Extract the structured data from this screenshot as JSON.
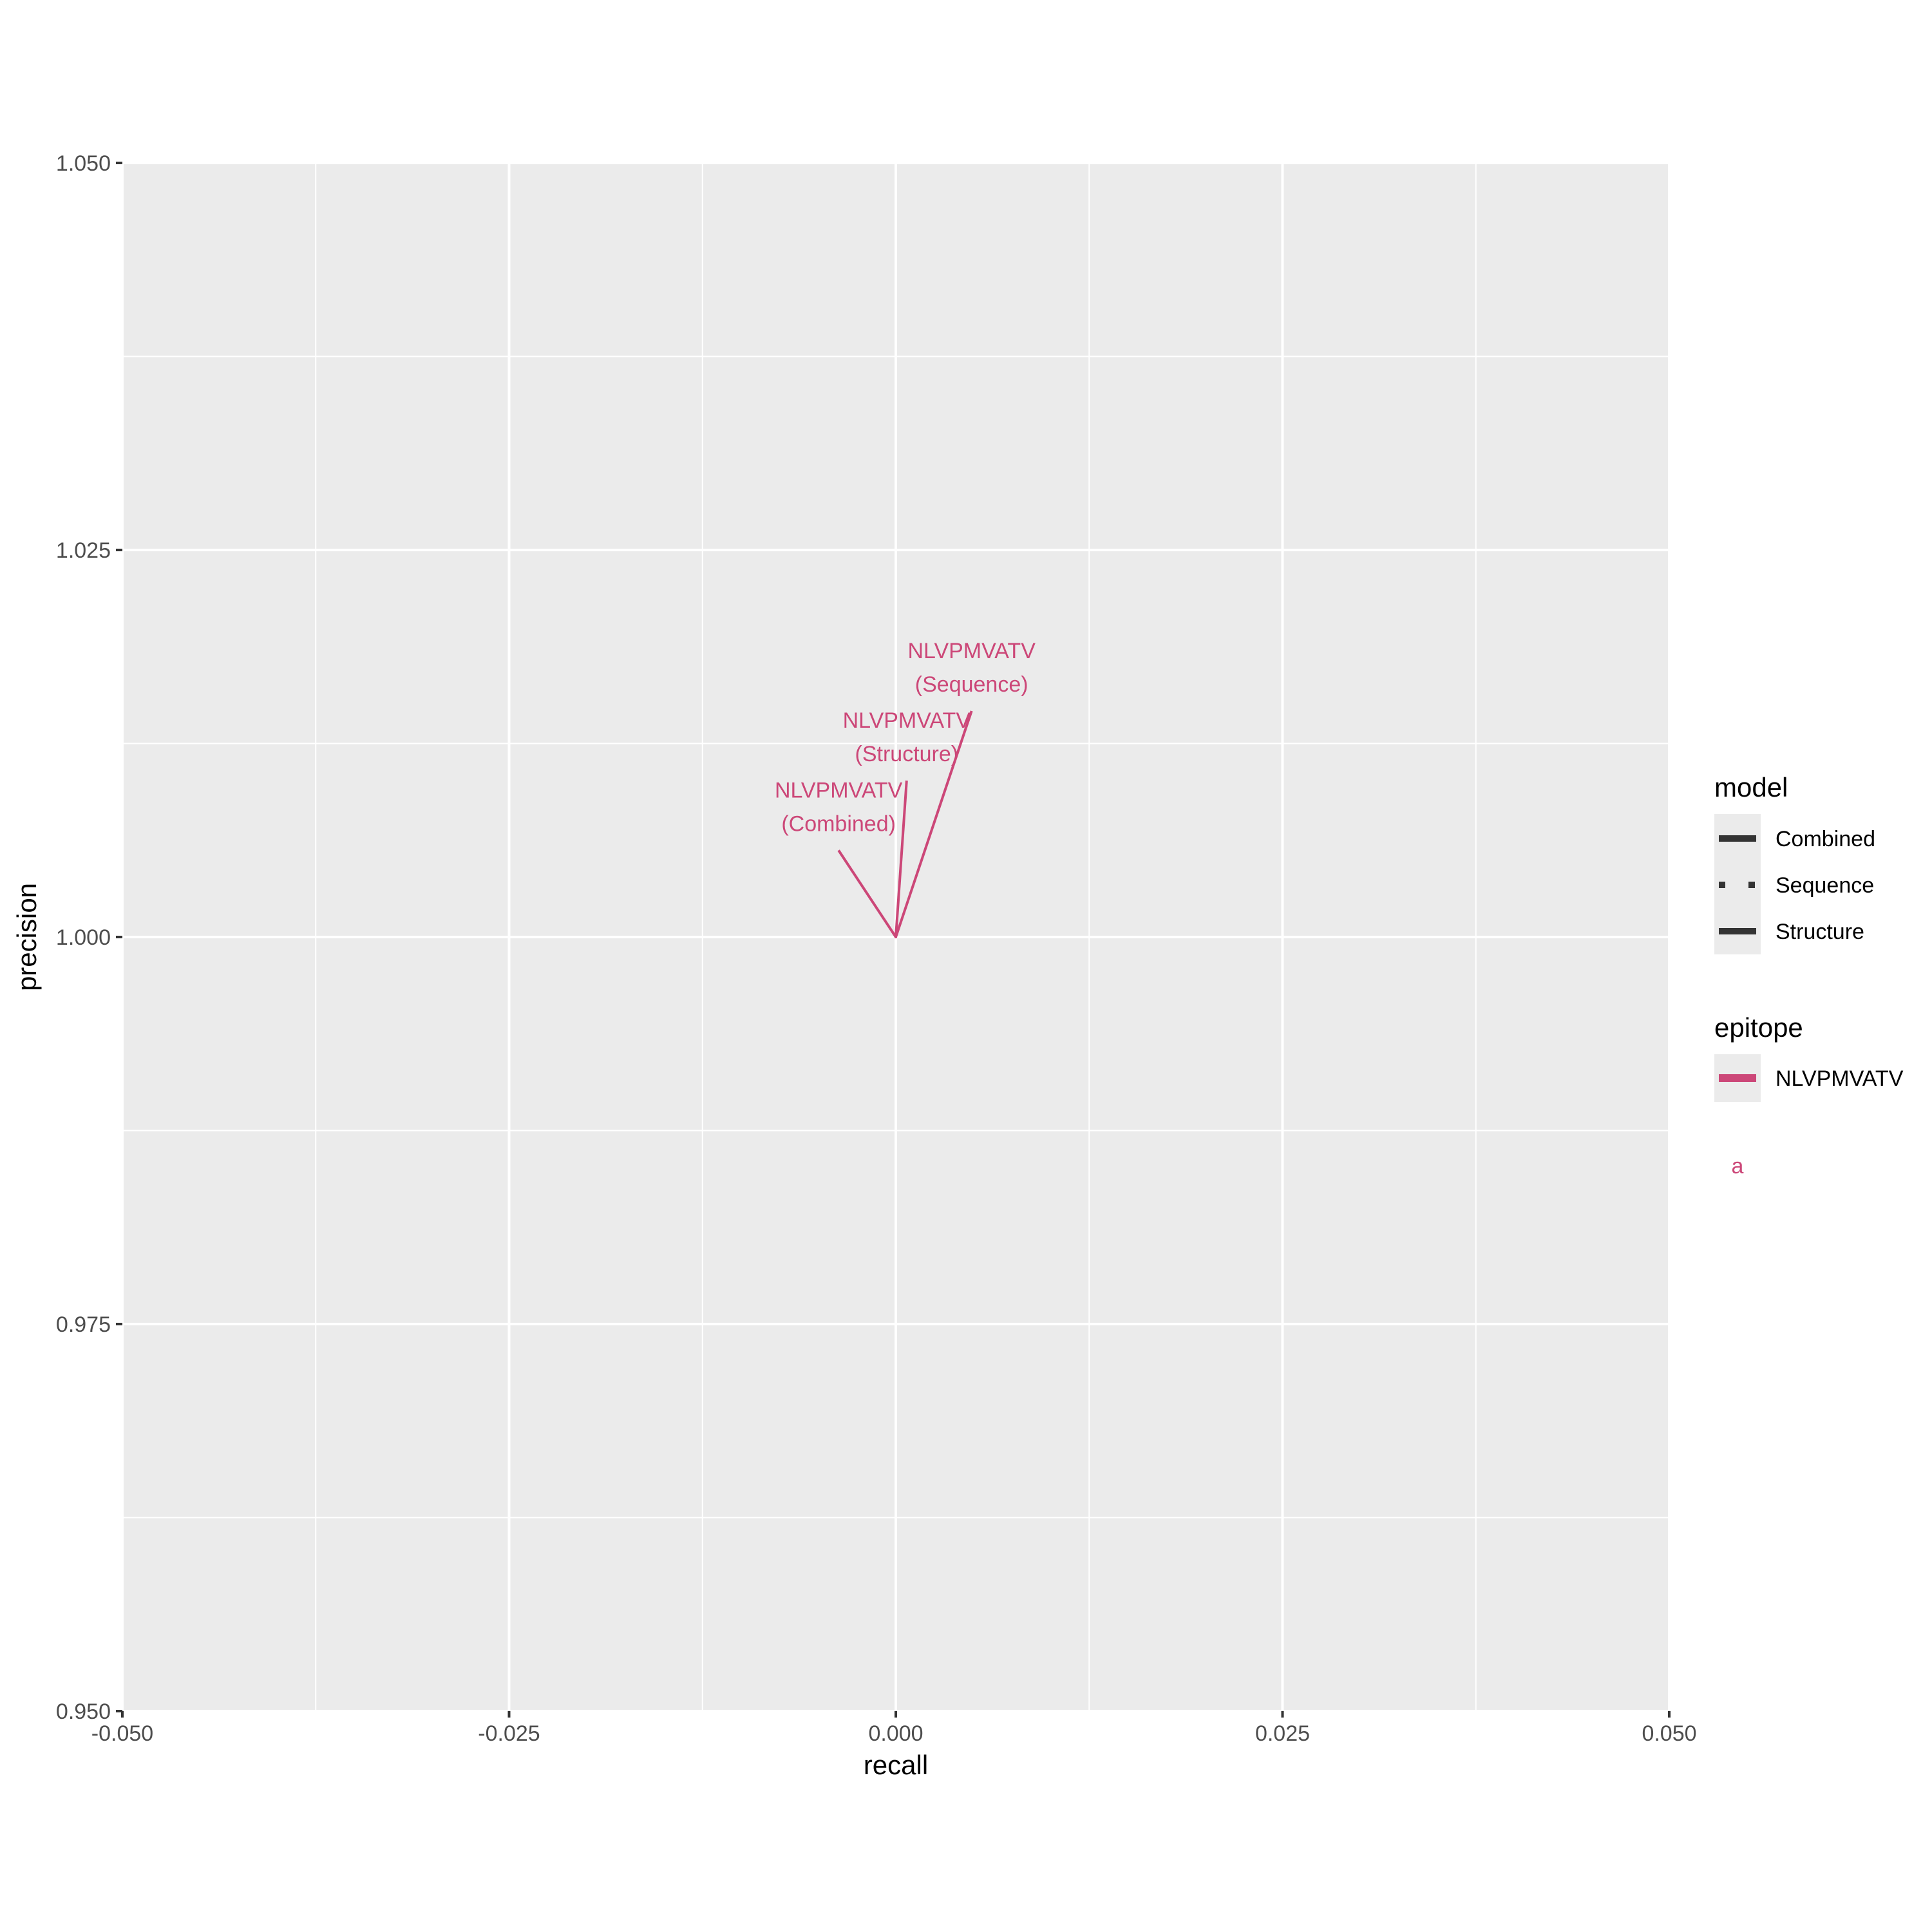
{
  "chart_data": {
    "type": "line",
    "title": "",
    "xlabel": "recall",
    "ylabel": "precision",
    "xlim": [
      -0.05,
      0.05
    ],
    "ylim": [
      0.95,
      1.05
    ],
    "x_ticks": [
      -0.05,
      -0.025,
      0.0,
      0.025,
      0.05
    ],
    "x_tick_labels": [
      "-0.050",
      "-0.025",
      "0.000",
      "0.025",
      "0.050"
    ],
    "y_ticks": [
      0.95,
      0.975,
      1.0,
      1.025,
      1.05
    ],
    "y_tick_labels": [
      "0.950",
      "0.975",
      "1.000",
      "1.025",
      "1.050"
    ],
    "grid": true,
    "panel_background": "#ebebeb",
    "series": [
      {
        "model": "Combined",
        "epitope": "NLVPMVATV",
        "color": "#cc4778",
        "linetype": "solid",
        "points": [
          {
            "x": 0.0,
            "y": 1.0
          }
        ]
      },
      {
        "model": "Sequence",
        "epitope": "NLVPMVATV",
        "color": "#cc4778",
        "linetype": "dotted",
        "points": [
          {
            "x": 0.0,
            "y": 1.0
          }
        ]
      },
      {
        "model": "Structure",
        "epitope": "NLVPMVATV",
        "color": "#cc4778",
        "linetype": "solid",
        "points": [
          {
            "x": 0.0,
            "y": 1.0
          }
        ]
      }
    ],
    "annotations": [
      {
        "line1": "NLVPMVATV",
        "line2": "(Combined)",
        "color": "#cc4778",
        "anchor": {
          "x": 0.0,
          "y": 1.0
        },
        "label_pos": {
          "x": -0.0037,
          "y": 1.0056
        }
      },
      {
        "line1": "NLVPMVATV",
        "line2": "(Structure)",
        "color": "#cc4778",
        "anchor": {
          "x": 0.0,
          "y": 1.0
        },
        "label_pos": {
          "x": 0.0007,
          "y": 1.0101
        }
      },
      {
        "line1": "NLVPMVATV",
        "line2": "(Sequence)",
        "color": "#cc4778",
        "anchor": {
          "x": 0.0,
          "y": 1.0
        },
        "label_pos": {
          "x": 0.0049,
          "y": 1.0146
        }
      }
    ],
    "legends": [
      {
        "title": "model",
        "entries": [
          {
            "label": "Combined",
            "style": "solid"
          },
          {
            "label": "Sequence",
            "style": "dotted"
          },
          {
            "label": "Structure",
            "style": "solid"
          }
        ]
      },
      {
        "title": "epitope",
        "entries": [
          {
            "label": "NLVPMVATV",
            "color": "#cc4778"
          }
        ]
      }
    ],
    "legend_extra_key": {
      "text": "a",
      "color": "#cc4778"
    },
    "legend_position": "right"
  }
}
